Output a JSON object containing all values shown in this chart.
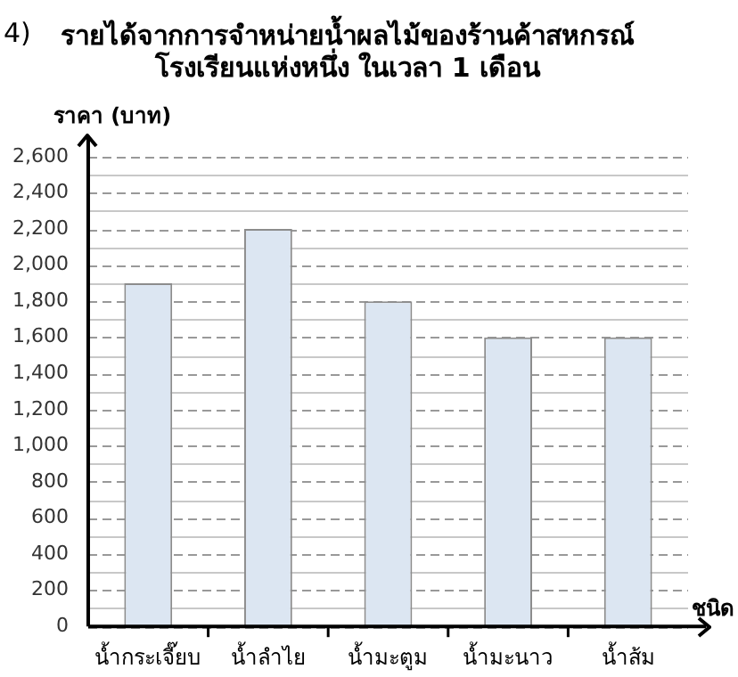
{
  "chart_data": {
    "type": "bar",
    "title": "รายได้จากการจำหน่ายน้ำผลไม้ของร้านค้าสหกรณ์\nโรงเรียนแห่งหนึ่ง ในเวลา 1 เดือน",
    "ylabel": "ราคา (บาท)",
    "xlabel": "ชนิด",
    "annotations": [
      "4)"
    ],
    "categories": [
      "น้ำกระเจี๊ยบ",
      "น้ำลำไย",
      "น้ำมะตูม",
      "น้ำมะนาว",
      "น้ำส้ม"
    ],
    "values": [
      1900,
      2200,
      1800,
      1600,
      1600
    ],
    "color": "#dce6f2",
    "ylim": [
      0,
      2600
    ],
    "yticks": [
      {
        "value": 0,
        "label": "0"
      },
      {
        "value": 200,
        "label": "200"
      },
      {
        "value": 400,
        "label": "400"
      },
      {
        "value": 600,
        "label": "600"
      },
      {
        "value": 800,
        "label": "800"
      },
      {
        "value": 1000,
        "label": "1,000"
      },
      {
        "value": 1200,
        "label": "1,200"
      },
      {
        "value": 1400,
        "label": "1,400"
      },
      {
        "value": 1600,
        "label": "1,600"
      },
      {
        "value": 1800,
        "label": "1,800"
      },
      {
        "value": 2000,
        "label": "2,000"
      },
      {
        "value": 2200,
        "label": "2,200"
      },
      {
        "value": 2400,
        "label": "2,400"
      },
      {
        "value": 2600,
        "label": "2,600"
      }
    ],
    "grid": "y"
  }
}
